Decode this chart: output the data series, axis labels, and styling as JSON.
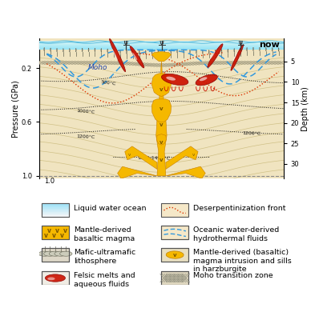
{
  "title": "now",
  "bg_color": "#f0e4c0",
  "ocean_top": "#b8eef8",
  "ocean_bot": "#e0f6fc",
  "magma_color": "#f5b800",
  "magma_dark": "#c88000",
  "felsic_color": "#cc1100",
  "felsic_dark": "#880000",
  "blue_dash": "#3399dd",
  "red_dot": "#dd3300",
  "isotherm_color": "#222222",
  "flow_color": "#c8b878",
  "moho_xhatch": "#999999",
  "pressure_label": "Pressure (GPa)",
  "depth_label": "Depth (km)",
  "pressure_ticks": [
    0.2,
    0.6,
    1.0
  ],
  "depth_vals": [
    5,
    10,
    15,
    20,
    25,
    30
  ],
  "depth_pressures": [
    0.152,
    0.303,
    0.455,
    0.606,
    0.758,
    0.909
  ],
  "moho_label": "Moho",
  "legend_left": [
    "Liquid water ocean",
    "Mantle-derived\nbasaltic magma",
    "Mafic-ultramafic\nlithosphere",
    "Felsic melts and\naqueous fluids"
  ],
  "legend_right": [
    "Deserpentinization front",
    "Oceanic water-derived\nhydrothermal fluids",
    "Mantle-derived (basaltic)\nmagma intrusion and sills\nin harzburgite",
    "Moho transition zone"
  ]
}
